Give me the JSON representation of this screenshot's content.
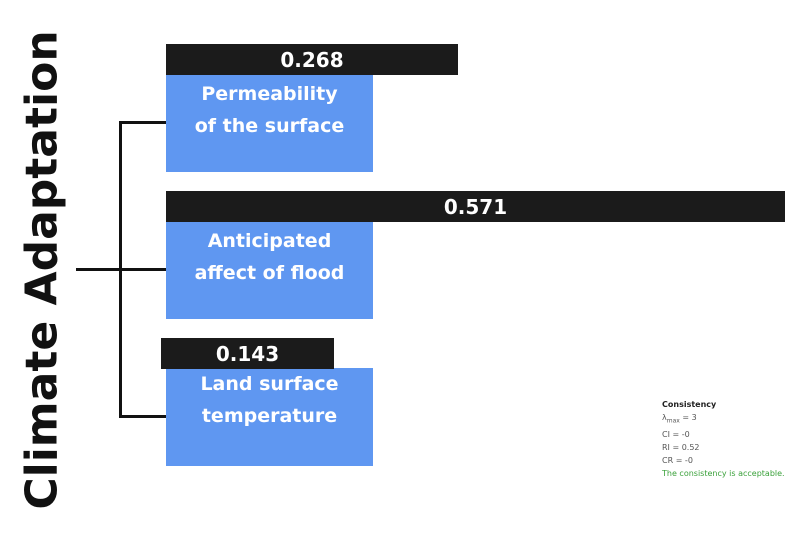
{
  "root": {
    "title": "Climate Adaptation"
  },
  "criteria": [
    {
      "weight": "0.268",
      "value": 0.268,
      "label_lines": [
        "Permeability",
        "of the surface"
      ]
    },
    {
      "weight": "0.571",
      "value": 0.571,
      "label_lines": [
        "Anticipated",
        "affect of flood"
      ]
    },
    {
      "weight": "0.143",
      "value": 0.143,
      "label_lines": [
        "Land surface",
        "temperature"
      ]
    }
  ],
  "consistency": {
    "title": "Consistency",
    "lambda_symbol": "λ",
    "lambda_sub": "max",
    "lambda_value": " = 3",
    "ci": "CI = -0",
    "ri": "RI = 0.52",
    "cr": "CR = -0",
    "status": "The consistency is acceptable.",
    "status_color": "#3aa13a"
  },
  "colors": {
    "node_fill": "#5f97f1",
    "bar_fill": "#1b1b1b",
    "line": "#111111"
  }
}
